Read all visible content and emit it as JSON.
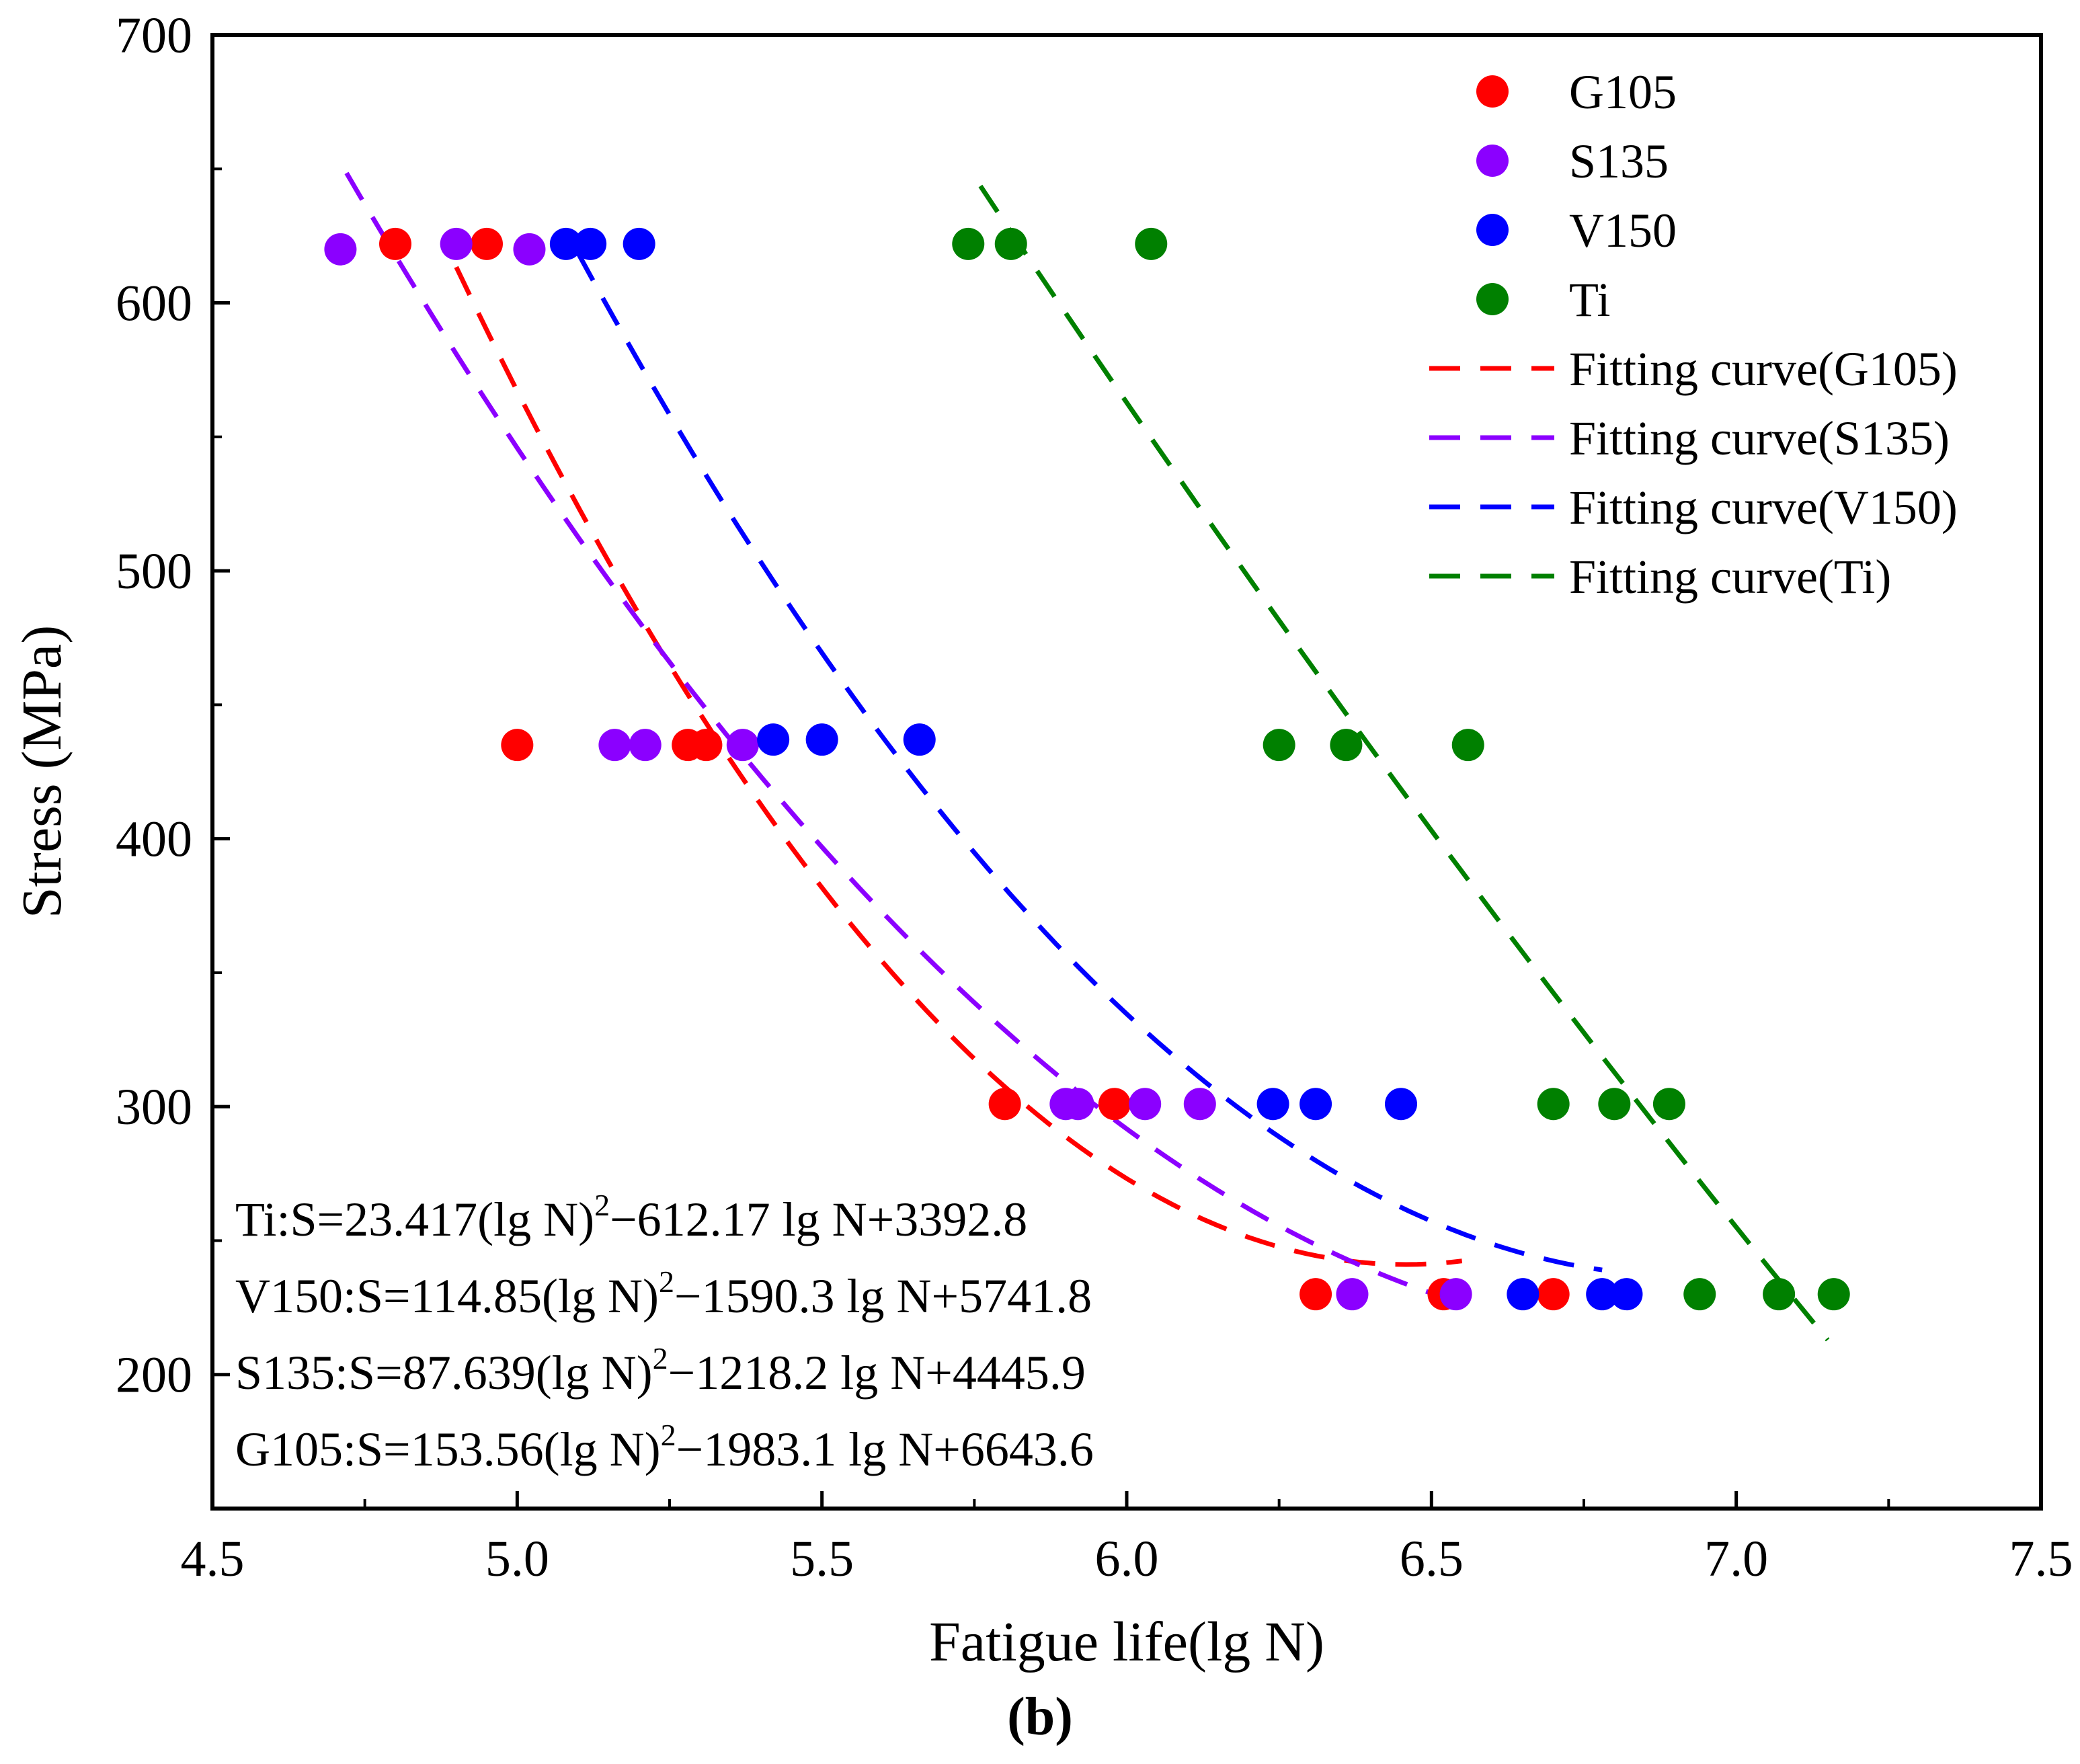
{
  "chart_data": {
    "type": "scatter",
    "xlabel": "Fatigue life(lg N)",
    "ylabel": "Stress (MPa)",
    "xlim": [
      4.5,
      7.5
    ],
    "ylim": [
      150,
      700
    ],
    "xticks": [
      4.5,
      5.0,
      5.5,
      6.0,
      6.5,
      7.0,
      7.5
    ],
    "xtick_labels": [
      "4.5",
      "5.0",
      "5.5",
      "6.0",
      "6.5",
      "7.0",
      "7.5"
    ],
    "yticks": [
      200,
      300,
      400,
      500,
      600,
      700
    ],
    "ytick_labels": [
      "200",
      "300",
      "400",
      "500",
      "600",
      "700"
    ],
    "grid": false,
    "legend_position": "top-right",
    "caption": "(b)",
    "series": [
      {
        "name": "G105",
        "color": "#ff0000",
        "x": [
          4.8,
          4.95,
          5.0,
          5.28,
          5.31,
          5.8,
          5.98,
          6.31,
          6.52,
          6.7
        ],
        "y": [
          622,
          622,
          435,
          435,
          435,
          301,
          301,
          230,
          230,
          230
        ]
      },
      {
        "name": "S135",
        "color": "#8b00ff",
        "x": [
          4.71,
          4.9,
          5.02,
          5.16,
          5.21,
          5.37,
          5.9,
          5.92,
          6.03,
          6.12,
          6.37,
          6.54
        ],
        "y": [
          620,
          622,
          620,
          435,
          435,
          435,
          301,
          301,
          301,
          301,
          230,
          230
        ]
      },
      {
        "name": "V150",
        "color": "#0000ff",
        "x": [
          5.08,
          5.12,
          5.2,
          5.42,
          5.5,
          5.66,
          6.24,
          6.31,
          6.45,
          6.65,
          6.78,
          6.82
        ],
        "y": [
          622,
          622,
          622,
          437,
          437,
          437,
          301,
          301,
          301,
          230,
          230,
          230
        ]
      },
      {
        "name": "Ti",
        "color": "#008000",
        "x": [
          5.74,
          5.81,
          6.04,
          6.25,
          6.36,
          6.56,
          6.7,
          6.8,
          6.89,
          6.94,
          7.07,
          7.16
        ],
        "y": [
          622,
          622,
          622,
          435,
          435,
          435,
          301,
          301,
          301,
          230,
          230,
          230
        ]
      }
    ],
    "fitting_curves": [
      {
        "name": "Fitting curve(G105)",
        "color": "#ff0000",
        "a": 153.56,
        "b": -1983.1,
        "c": 6643.6,
        "x_range": [
          4.9,
          6.55
        ]
      },
      {
        "name": "Fitting curve(S135)",
        "color": "#8b00ff",
        "a": 87.639,
        "b": -1218.2,
        "c": 4445.9,
        "x_range": [
          4.72,
          6.53
        ]
      },
      {
        "name": "Fitting curve(V150)",
        "color": "#0000ff",
        "a": 114.85,
        "b": -1590.3,
        "c": 5741.8,
        "x_range": [
          5.1,
          6.78
        ]
      },
      {
        "name": "Fitting curve(Ti)",
        "color": "#008000",
        "a": 23.417,
        "b": -612.17,
        "c": 3392.8,
        "x_range": [
          5.76,
          7.15
        ]
      }
    ],
    "equations": [
      {
        "name": "Ti",
        "prefix": "Ti:S=23.417(lg N)",
        "sup": "2",
        "suffix": "−612.17 lg N+3392.8"
      },
      {
        "name": "V150",
        "prefix": "V150:S=114.85(lg N)",
        "sup": "2",
        "suffix": "−1590.3 lg N+5741.8"
      },
      {
        "name": "S135",
        "prefix": "S135:S=87.639(lg N)",
        "sup": "2",
        "suffix": "−1218.2 lg N+4445.9"
      },
      {
        "name": "G105",
        "prefix": "G105:S=153.56(lg N)",
        "sup": "2",
        "suffix": "−1983.1 lg N+6643.6"
      }
    ]
  }
}
